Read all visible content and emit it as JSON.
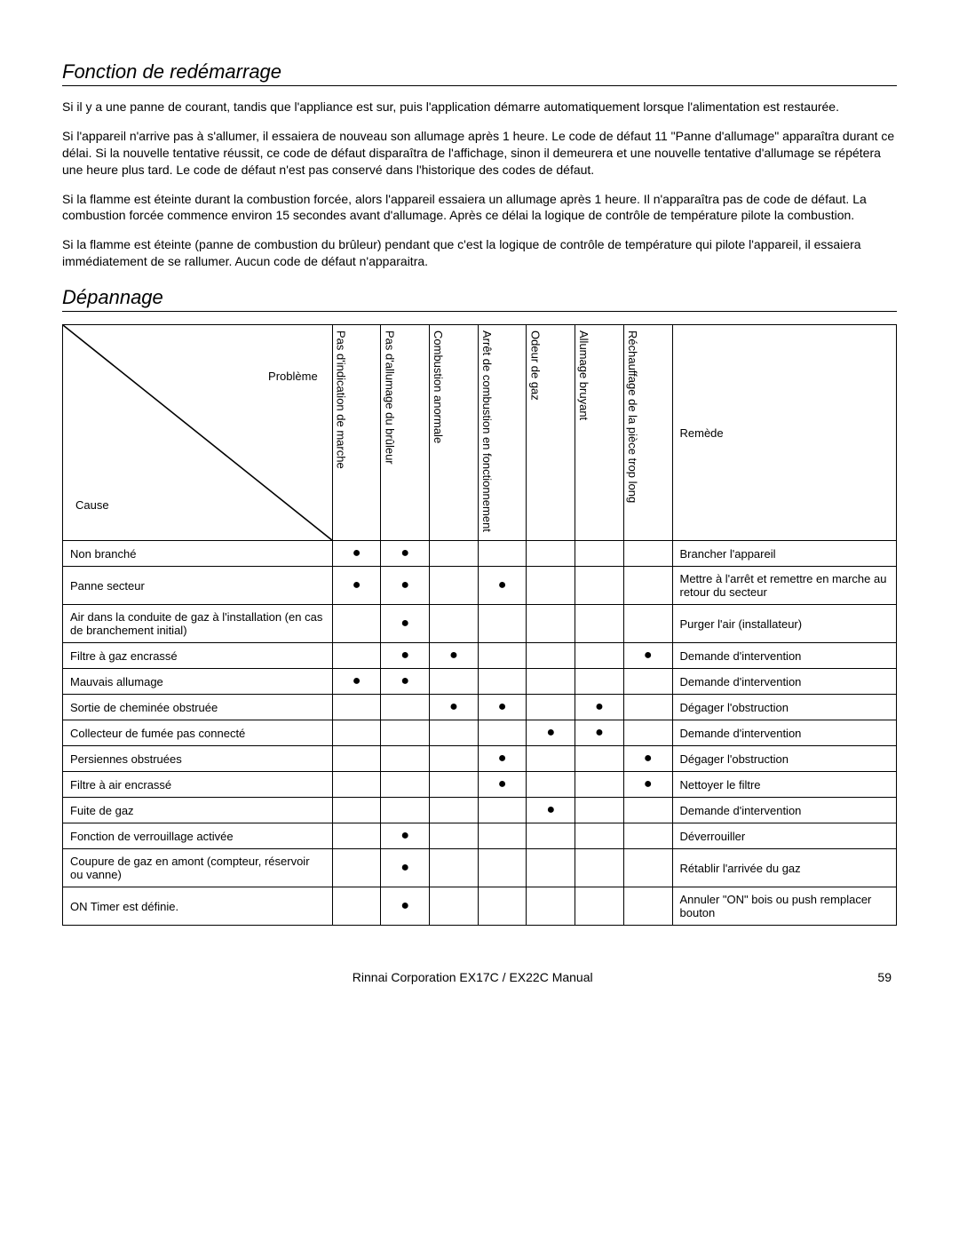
{
  "section1": {
    "title": "Fonction de redémarrage",
    "p1": "Si il y a une panne de courant, tandis que l'appliance est sur, puis l'application démarre automatiquement lorsque l'alimentation est restaurée.",
    "p2": "Si l'appareil n'arrive pas à s'allumer, il essaiera de nouveau son allumage après 1 heure. Le code de défaut 11 \"Panne d'allumage\" apparaîtra durant ce délai. Si la nouvelle tentative réussit, ce code de défaut disparaîtra de l'affichage, sinon il demeurera et une nouvelle tentative d'allumage se répétera une heure plus tard. Le code de défaut n'est pas conservé dans l'historique des codes de défaut.",
    "p3": "Si la flamme est éteinte durant la combustion forcée, alors l'appareil essaiera un allumage après 1 heure. Il n'apparaîtra pas de code de défaut. La combustion forcée commence environ 15 secondes avant d'allumage.  Après ce délai la logique de contrôle de température pilote la combustion.",
    "p4": "Si la flamme est éteinte (panne de combustion du brûleur) pendant que c'est la logique de contrôle de température qui pilote l'appareil, il essaiera immédiatement de se rallumer. Aucun code de défaut n'apparaitra."
  },
  "section2": {
    "title": "Dépannage",
    "diag_top": "Problème",
    "diag_bot": "Cause",
    "cols": [
      "Pas d'indication de marche",
      "Pas d'allumage du brûleur",
      "Combustion anormale",
      "Arrêt de combustion en fonctionnement",
      "Odeur de gaz",
      "Allumage bruyant",
      "Réchauffage de la pièce trop long"
    ],
    "remedy_header": "Remède",
    "rows": [
      {
        "cause": "Non branché",
        "d": [
          "●",
          "●",
          "",
          "",
          "",
          "",
          ""
        ],
        "remedy": "Brancher l'appareil"
      },
      {
        "cause": "Panne secteur",
        "d": [
          "●",
          "●",
          "",
          "●",
          "",
          "",
          ""
        ],
        "remedy": "Mettre à l'arrêt et remettre en marche au retour du secteur"
      },
      {
        "cause": "Air dans la conduite de gaz à l'installation (en cas de branchement initial)",
        "d": [
          "",
          "●",
          "",
          "",
          "",
          "",
          ""
        ],
        "remedy": "Purger l'air (installateur)"
      },
      {
        "cause": "Filtre à gaz encrassé",
        "d": [
          "",
          "●",
          "●",
          "",
          "",
          "",
          "●"
        ],
        "remedy": "Demande d'intervention"
      },
      {
        "cause": "Mauvais allumage",
        "d": [
          "●",
          "●",
          "",
          "",
          "",
          "",
          ""
        ],
        "remedy": "Demande d'intervention"
      },
      {
        "cause": "Sortie de cheminée obstruée",
        "d": [
          "",
          "",
          "●",
          "●",
          "",
          "●",
          ""
        ],
        "remedy": "Dégager l'obstruction"
      },
      {
        "cause": "Collecteur de fumée pas connecté",
        "d": [
          "",
          "",
          "",
          "",
          "●",
          "●",
          ""
        ],
        "remedy": "Demande d'intervention"
      },
      {
        "cause": "Persiennes obstruées",
        "d": [
          "",
          "",
          "",
          "●",
          "",
          "",
          "●"
        ],
        "remedy": "Dégager l'obstruction"
      },
      {
        "cause": "Filtre à air encrassé",
        "d": [
          "",
          "",
          "",
          "●",
          "",
          "",
          "●"
        ],
        "remedy": "Nettoyer le filtre"
      },
      {
        "cause": "Fuite de gaz",
        "d": [
          "",
          "",
          "",
          "",
          "●",
          "",
          ""
        ],
        "remedy": "Demande d'intervention"
      },
      {
        "cause": "Fonction de verrouillage activée",
        "d": [
          "",
          "●",
          "",
          "",
          "",
          "",
          ""
        ],
        "remedy": "Déverrouiller"
      },
      {
        "cause": "Coupure de gaz en amont (compteur, réservoir ou vanne)",
        "d": [
          "",
          "●",
          "",
          "",
          "",
          "",
          ""
        ],
        "remedy": "Rétablir l'arrivée du gaz"
      },
      {
        "cause": "ON Timer est définie.",
        "d": [
          "",
          "●",
          "",
          "",
          "",
          "",
          ""
        ],
        "remedy": "Annuler \"ON\" bois ou push remplacer bouton"
      }
    ]
  },
  "footer": {
    "mid": "Rinnai Corporation EX17C / EX22C Manual",
    "page": "59"
  }
}
